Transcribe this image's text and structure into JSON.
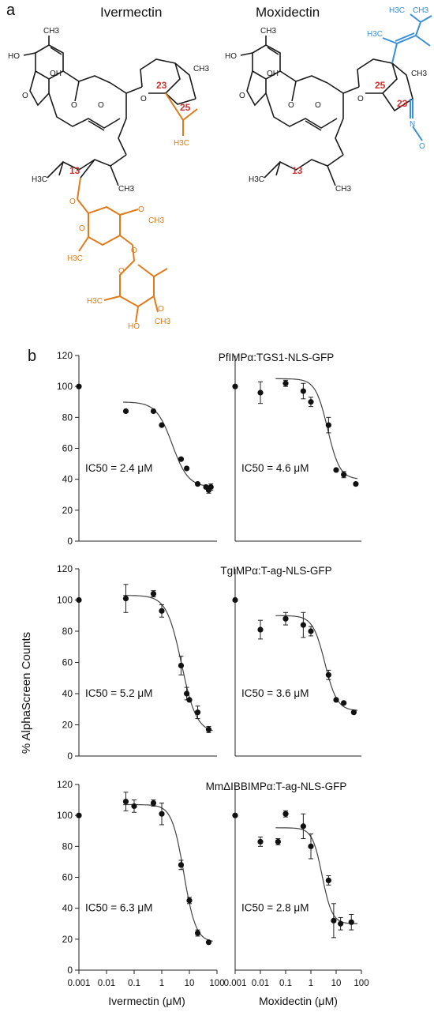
{
  "panel_a": {
    "label": "a",
    "left_title": "Ivermectin",
    "right_title": "Moxidectin",
    "ivermectin_atoms": {
      "ho_top": "HO",
      "me_top": "CH3",
      "oh": "OH",
      "o_ring": "O",
      "ketone_o": "O",
      "ring_o1": "O",
      "ring_o2": "O",
      "pos23": "23",
      "pos25": "25",
      "ch3_right": "CH3",
      "h3c_iso": "H3C",
      "h3c_13": "H3C",
      "pos13": "13",
      "ch3_13": "CH3",
      "o_sugar": "O",
      "o_me1": "O",
      "ch3_1": "CH3",
      "o_ring_s1": "O",
      "h3c_s1": "H3C",
      "o_link": "O",
      "o_ring_s2": "O",
      "h3c_s2": "H3C",
      "ho_s2": "HO",
      "o_me2": "O",
      "ch3_2": "CH3"
    },
    "moxidectin_atoms": {
      "ho_top": "HO",
      "me_top": "CH3",
      "oh": "OH",
      "o_ring": "O",
      "ketone_o": "O",
      "ring_o1": "O",
      "ring_o2": "O",
      "pos23": "23",
      "pos25": "25",
      "h3c_top": "H3C",
      "ch3_top": "CH3",
      "h3c_branch": "H3C",
      "ch3_right": "CH3",
      "n": "N",
      "o_oxime": "O",
      "h3c_13": "H3C",
      "pos13": "13",
      "ch3_13": "CH3"
    },
    "colors": {
      "ivermectin_highlight": "#e07b1a",
      "moxidectin_highlight": "#3b8ed8",
      "position": "#d32f2f",
      "bond": "#1a1a1a"
    }
  },
  "panel_b": {
    "label": "b",
    "ylabel": "% AlphaScreen Counts",
    "xlabels": [
      "Ivermectin (μM)",
      "Moxidectin (μM)"
    ]
  },
  "chart_data": [
    {
      "type": "scatter",
      "title": "PfIMPα:TGS1-NLS-GFP",
      "ylim": [
        0,
        120
      ],
      "yticks": [
        0,
        20,
        40,
        60,
        80,
        100,
        120
      ],
      "xscale": "log",
      "xticks": [
        "0.001",
        "0.01",
        "0.1",
        "1",
        "10",
        "100"
      ],
      "xlim": [
        0.001,
        100
      ],
      "panels": [
        {
          "drug": "Ivermectin",
          "ic50_text": "IC50 = 2.4 μM",
          "ic50": 2.4,
          "top": 90,
          "bottom": 35,
          "hill": 1.5,
          "points": [
            {
              "x": 0.001,
              "y": 100,
              "err": 0
            },
            {
              "x": 0.05,
              "y": 84,
              "err": 0
            },
            {
              "x": 0.5,
              "y": 84,
              "err": 0
            },
            {
              "x": 1,
              "y": 75,
              "err": 0
            },
            {
              "x": 5,
              "y": 53,
              "err": 0
            },
            {
              "x": 8,
              "y": 47,
              "err": 0
            },
            {
              "x": 20,
              "y": 37,
              "err": 0
            },
            {
              "x": 40,
              "y": 35,
              "err": 0
            },
            {
              "x": 50,
              "y": 33,
              "err": 2
            },
            {
              "x": 60,
              "y": 35,
              "err": 2
            }
          ]
        },
        {
          "drug": "Moxidectin",
          "ic50_text": "IC50 = 4.6 μM",
          "ic50": 4.6,
          "top": 105,
          "bottom": 40,
          "hill": 1.8,
          "points": [
            {
              "x": 0.001,
              "y": 100,
              "err": 0
            },
            {
              "x": 0.01,
              "y": 96,
              "err": 7
            },
            {
              "x": 0.1,
              "y": 102,
              "err": 2
            },
            {
              "x": 0.5,
              "y": 97,
              "err": 5
            },
            {
              "x": 1,
              "y": 90,
              "err": 3
            },
            {
              "x": 5,
              "y": 75,
              "err": 5
            },
            {
              "x": 10,
              "y": 46,
              "err": 0
            },
            {
              "x": 20,
              "y": 43,
              "err": 2
            },
            {
              "x": 60,
              "y": 37,
              "err": 0
            }
          ]
        }
      ]
    },
    {
      "type": "scatter",
      "title": "TgIMPα:T-ag-NLS-GFP",
      "ylim": [
        0,
        120
      ],
      "yticks": [
        0,
        20,
        40,
        60,
        80,
        100,
        120
      ],
      "xscale": "log",
      "xticks": [
        "0.001",
        "0.01",
        "0.1",
        "1",
        "10",
        "100"
      ],
      "xlim": [
        0.001,
        100
      ],
      "panels": [
        {
          "drug": "Ivermectin",
          "ic50_text": "IC50 = 5.2 μM",
          "ic50": 5.2,
          "top": 103,
          "bottom": 15,
          "hill": 1.6,
          "points": [
            {
              "x": 0.001,
              "y": 100,
              "err": 0
            },
            {
              "x": 0.05,
              "y": 101,
              "err": 9
            },
            {
              "x": 0.5,
              "y": 104,
              "err": 2
            },
            {
              "x": 1,
              "y": 93,
              "err": 4
            },
            {
              "x": 5,
              "y": 58,
              "err": 6
            },
            {
              "x": 8,
              "y": 40,
              "err": 4
            },
            {
              "x": 10,
              "y": 36,
              "err": 0
            },
            {
              "x": 20,
              "y": 28,
              "err": 4
            },
            {
              "x": 50,
              "y": 17,
              "err": 2
            }
          ]
        },
        {
          "drug": "Moxidectin",
          "ic50_text": "IC50 = 3.6 μM",
          "ic50": 3.6,
          "top": 90,
          "bottom": 29,
          "hill": 1.8,
          "points": [
            {
              "x": 0.001,
              "y": 100,
              "err": 0
            },
            {
              "x": 0.01,
              "y": 81,
              "err": 6
            },
            {
              "x": 0.1,
              "y": 88,
              "err": 4
            },
            {
              "x": 0.5,
              "y": 84,
              "err": 8
            },
            {
              "x": 1,
              "y": 80,
              "err": 3
            },
            {
              "x": 5,
              "y": 52,
              "err": 3
            },
            {
              "x": 10,
              "y": 36,
              "err": 0
            },
            {
              "x": 20,
              "y": 34,
              "err": 0
            },
            {
              "x": 50,
              "y": 28,
              "err": 0
            }
          ]
        }
      ]
    },
    {
      "type": "scatter",
      "title": "MmΔIBBIMPα:T-ag-NLS-GFP",
      "ylim": [
        0,
        120
      ],
      "yticks": [
        0,
        20,
        40,
        60,
        80,
        100,
        120
      ],
      "xscale": "log",
      "xticks": [
        "0.001",
        "0.01",
        "0.1",
        "1",
        "10",
        "100"
      ],
      "xlim": [
        0.001,
        100
      ],
      "panels": [
        {
          "drug": "Ivermectin",
          "ic50_text": "IC50 = 6.3 μM",
          "ic50": 6.3,
          "top": 107,
          "bottom": 18,
          "hill": 2.0,
          "points": [
            {
              "x": 0.001,
              "y": 100,
              "err": 0
            },
            {
              "x": 0.05,
              "y": 109,
              "err": 6
            },
            {
              "x": 0.1,
              "y": 106,
              "err": 4
            },
            {
              "x": 0.5,
              "y": 108,
              "err": 2
            },
            {
              "x": 1,
              "y": 101,
              "err": 7
            },
            {
              "x": 5,
              "y": 68,
              "err": 3
            },
            {
              "x": 10,
              "y": 45,
              "err": 2
            },
            {
              "x": 20,
              "y": 24,
              "err": 2
            },
            {
              "x": 50,
              "y": 18,
              "err": 0
            }
          ]
        },
        {
          "drug": "Moxidectin",
          "ic50_text": "IC50 = 2.8 μM",
          "ic50": 2.8,
          "top": 92,
          "bottom": 30,
          "hill": 2.2,
          "points": [
            {
              "x": 0.001,
              "y": 100,
              "err": 0
            },
            {
              "x": 0.01,
              "y": 83,
              "err": 3
            },
            {
              "x": 0.05,
              "y": 83,
              "err": 2
            },
            {
              "x": 0.1,
              "y": 101,
              "err": 2
            },
            {
              "x": 0.5,
              "y": 93,
              "err": 8
            },
            {
              "x": 1,
              "y": 80,
              "err": 8
            },
            {
              "x": 5,
              "y": 58,
              "err": 3
            },
            {
              "x": 8,
              "y": 32,
              "err": 11
            },
            {
              "x": 15,
              "y": 30,
              "err": 4
            },
            {
              "x": 40,
              "y": 31,
              "err": 5
            }
          ]
        }
      ]
    }
  ]
}
